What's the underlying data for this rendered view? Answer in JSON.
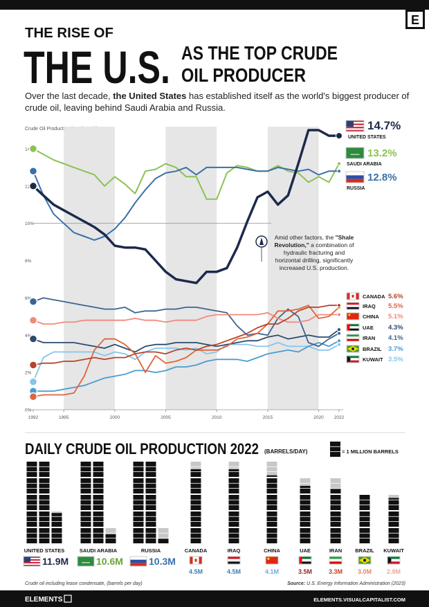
{
  "header": {
    "kicker": "THE RISE OF",
    "big": "THE U.S.",
    "line1": "AS THE TOP CRUDE",
    "line2": "OIL PRODUCER",
    "logo": "E",
    "subtitle": [
      "Over the last decade, ",
      "the United States",
      " has established itself as the world's biggest producer of crude oil, leaving behind Saudi Arabia and Russia."
    ]
  },
  "chart_data": [
    {
      "type": "line",
      "y_label": "Crude Oil Production (% of World)",
      "x": [
        1992,
        1993,
        1994,
        1995,
        1996,
        1997,
        1998,
        1999,
        2000,
        2001,
        2002,
        2003,
        2004,
        2005,
        2006,
        2007,
        2008,
        2009,
        2010,
        2011,
        2012,
        2013,
        2014,
        2015,
        2016,
        2017,
        2018,
        2019,
        2020,
        2021,
        2022
      ],
      "xlim": [
        1992,
        2022
      ],
      "xticks": [
        1992,
        1995,
        2000,
        2005,
        2010,
        2015,
        2020,
        2022
      ],
      "ylim": [
        0,
        15
      ],
      "yticks": [
        {
          "value": 0,
          "label": "0%"
        },
        {
          "value": 2,
          "label": "2%"
        },
        {
          "value": 4,
          "label": "4%"
        },
        {
          "value": 6,
          "label": "6%"
        },
        {
          "value": 8,
          "label": "8%"
        },
        {
          "value": 10,
          "label": "10%"
        },
        {
          "value": 12,
          "label": "12%"
        },
        {
          "value": 14,
          "label": "14%"
        }
      ],
      "ref_line": 10,
      "shaded_spans": [
        [
          1995,
          2000
        ],
        [
          2005,
          2010
        ],
        [
          2015,
          2020
        ]
      ],
      "annotation": [
        "Amid other factors, the ",
        "\"Shale Revolution,\"",
        " a combination of hydraulic fracturing and horizontal drilling, significantly increased U.S. production."
      ],
      "series": [
        {
          "name": "UNITED STATES",
          "color": "#1c2a4a",
          "end_label": "14.7%",
          "values": [
            12.0,
            11.5,
            11.0,
            10.7,
            10.4,
            10.1,
            9.8,
            9.4,
            8.8,
            8.7,
            8.7,
            8.6,
            8.0,
            7.4,
            7.0,
            6.9,
            6.8,
            7.4,
            7.4,
            7.6,
            8.7,
            10.1,
            11.4,
            11.7,
            11.0,
            11.5,
            13.2,
            15.0,
            15.0,
            14.7,
            14.7
          ]
        },
        {
          "name": "SAUDI ARABIA",
          "color": "#8dc153",
          "end_label": "13.2%",
          "values": [
            14.0,
            13.7,
            13.4,
            13.2,
            13.0,
            12.8,
            12.6,
            12.0,
            12.5,
            12.1,
            11.6,
            12.8,
            12.9,
            13.2,
            13.0,
            12.5,
            12.5,
            11.3,
            11.3,
            12.7,
            13.1,
            13.0,
            12.8,
            12.8,
            13.1,
            12.8,
            12.7,
            12.2,
            12.5,
            12.2,
            13.2
          ]
        },
        {
          "name": "RUSSIA",
          "color": "#3a6fa8",
          "end_label": "12.8%",
          "values": [
            12.8,
            11.5,
            10.5,
            10.0,
            9.5,
            9.3,
            9.1,
            9.3,
            9.7,
            10.3,
            11.1,
            11.8,
            12.4,
            12.7,
            12.8,
            13.0,
            12.6,
            13.0,
            13.0,
            13.0,
            13.0,
            12.9,
            12.8,
            12.8,
            13.0,
            12.9,
            12.8,
            12.9,
            12.6,
            12.8,
            12.8
          ]
        },
        {
          "name": "CANADA",
          "color": "#b5442c",
          "end_label": "5.6%",
          "values": [
            2.4,
            2.5,
            2.5,
            2.6,
            2.6,
            2.7,
            2.8,
            2.7,
            2.8,
            2.8,
            3.0,
            3.1,
            3.1,
            3.0,
            3.2,
            3.3,
            3.2,
            3.4,
            3.5,
            3.7,
            3.9,
            4.1,
            4.4,
            4.6,
            4.6,
            4.9,
            5.3,
            5.5,
            5.5,
            5.6,
            5.6
          ]
        },
        {
          "name": "IRAQ",
          "color": "#e0643c",
          "end_label": "5.5%",
          "values": [
            0.7,
            0.8,
            0.8,
            0.8,
            0.9,
            1.8,
            3.2,
            3.8,
            3.8,
            3.5,
            3.0,
            2.0,
            2.9,
            2.5,
            2.6,
            2.8,
            3.2,
            3.2,
            3.2,
            3.4,
            3.8,
            3.9,
            4.1,
            4.6,
            5.3,
            5.3,
            5.4,
            5.6,
            4.9,
            5.0,
            5.5
          ]
        },
        {
          "name": "CHINA",
          "color": "#f28a7a",
          "end_label": "5.1%",
          "values": [
            4.8,
            4.6,
            4.6,
            4.7,
            4.7,
            4.8,
            4.8,
            4.8,
            4.8,
            4.8,
            4.9,
            4.8,
            4.8,
            4.7,
            4.8,
            4.8,
            4.8,
            5.0,
            5.1,
            5.1,
            5.1,
            5.1,
            5.1,
            5.2,
            4.9,
            4.7,
            4.7,
            4.8,
            5.1,
            5.1,
            5.1
          ]
        },
        {
          "name": "UAE",
          "color": "#2d4a6a",
          "end_label": "4.3%",
          "values": [
            3.8,
            3.6,
            3.6,
            3.6,
            3.6,
            3.5,
            3.4,
            3.3,
            3.5,
            3.3,
            3.1,
            3.4,
            3.5,
            3.5,
            3.6,
            3.6,
            3.6,
            3.5,
            3.4,
            3.5,
            3.6,
            3.7,
            3.7,
            3.9,
            4.0,
            3.8,
            3.9,
            4.0,
            3.9,
            3.9,
            4.3
          ]
        },
        {
          "name": "IRAN",
          "color": "#3d6390",
          "end_label": "4.1%",
          "values": [
            5.8,
            6.0,
            5.9,
            5.8,
            5.7,
            5.6,
            5.5,
            5.4,
            5.4,
            5.5,
            5.2,
            5.3,
            5.3,
            5.4,
            5.4,
            5.5,
            5.5,
            5.4,
            5.3,
            5.2,
            4.5,
            4.0,
            4.1,
            4.0,
            4.9,
            5.4,
            5.0,
            3.6,
            3.4,
            3.8,
            4.1
          ]
        },
        {
          "name": "BRAZIL",
          "color": "#4a9bd0",
          "end_label": "3.7%",
          "values": [
            1.0,
            1.0,
            1.0,
            1.1,
            1.2,
            1.3,
            1.5,
            1.7,
            1.8,
            1.9,
            2.1,
            2.1,
            2.0,
            2.1,
            2.3,
            2.3,
            2.4,
            2.6,
            2.7,
            2.7,
            2.7,
            2.6,
            2.8,
            3.0,
            3.1,
            3.2,
            3.1,
            3.4,
            3.6,
            3.4,
            3.7
          ]
        },
        {
          "name": "KUWAIT",
          "color": "#86c5ea",
          "end_label": "3.5%",
          "values": [
            1.5,
            2.8,
            3.1,
            3.1,
            3.1,
            3.1,
            3.1,
            2.9,
            3.1,
            3.0,
            2.7,
            3.1,
            3.3,
            3.3,
            3.3,
            3.2,
            3.3,
            3.0,
            3.1,
            3.5,
            3.5,
            3.5,
            3.4,
            3.4,
            3.6,
            3.4,
            3.4,
            3.4,
            3.2,
            3.2,
            3.5
          ]
        }
      ]
    },
    {
      "type": "pictogram",
      "title": "DAILY CRUDE OIL PRODUCTION 2022",
      "subtitle": "(BARRELS/DAY)",
      "legend": "= 1 MILLION BARRELS",
      "categories": [
        "UNITED STATES",
        "SAUDI ARABIA",
        "RUSSIA",
        "CANADA",
        "IRAQ",
        "CHINA",
        "UAE",
        "IRAN",
        "BRAZIL",
        "KUWAIT"
      ],
      "values": [
        11.9,
        10.6,
        10.3,
        4.5,
        4.5,
        4.1,
        3.5,
        3.3,
        3.0,
        2.8
      ],
      "value_labels": [
        "11.9M",
        "10.6M",
        "10.3M",
        "4.5M",
        "4.5M",
        "4.1M",
        "3.5M",
        "3.3M",
        "3.0M",
        "2.8M"
      ],
      "colors": [
        "#1c2a4a",
        "#6aa339",
        "#3a6fa8",
        "#3f7fb5",
        "#3f7fb5",
        "#6aaee0",
        "#8b2e1e",
        "#c0452c",
        "#e8826e",
        "#f0a898"
      ]
    }
  ],
  "footer": {
    "note": "Crude oil including lease condensate, (barrels per day)",
    "source": [
      "Source:",
      " U.S. Energy Information Administration (2023)"
    ],
    "brand": "ELEMENTS",
    "url": "ELEMENTS.VISUALCAPITALIST.COM"
  }
}
